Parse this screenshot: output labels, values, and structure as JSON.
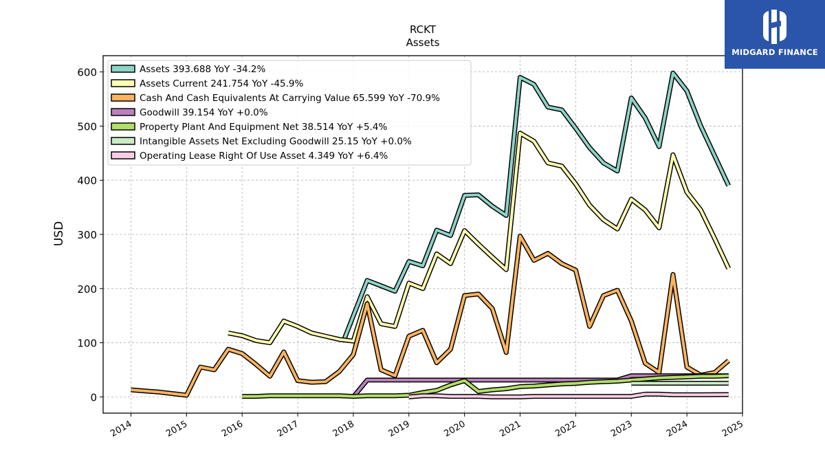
{
  "chart_data": {
    "type": "line",
    "title": "RCKT",
    "subtitle": "Assets",
    "ylabel": "USD",
    "xlabel": "",
    "xlim": [
      2013.5,
      2025.0
    ],
    "ylim": [
      -30,
      630
    ],
    "yticks": [
      0,
      100,
      200,
      300,
      400,
      500,
      600
    ],
    "xticks": [
      2014,
      2015,
      2016,
      2017,
      2018,
      2019,
      2020,
      2021,
      2022,
      2023,
      2024,
      2025
    ],
    "grid": true,
    "legend_position": "top-left",
    "series": [
      {
        "name": "Assets  393.688 YoY -34.2%",
        "color": "#8dd3c7",
        "x": [
          2017.83,
          2018.25,
          2018.5,
          2018.75,
          2019.0,
          2019.25,
          2019.5,
          2019.75,
          2020.0,
          2020.25,
          2020.5,
          2020.75,
          2021.0,
          2021.25,
          2021.5,
          2021.75,
          2022.0,
          2022.25,
          2022.5,
          2022.75,
          2023.0,
          2023.25,
          2023.5,
          2023.75,
          2024.0,
          2024.25,
          2024.5,
          2024.75
        ],
        "y": [
          105,
          215,
          205,
          195,
          250,
          242,
          308,
          298,
          372,
          373,
          352,
          335,
          590,
          577,
          535,
          530,
          496,
          460,
          432,
          417,
          552,
          515,
          462,
          598,
          565,
          500,
          445,
          390
        ]
      },
      {
        "name": "Assets Current  241.754 YoY -45.9%",
        "color": "#ffffb3",
        "x": [
          2015.75,
          2016.0,
          2016.25,
          2016.5,
          2016.75,
          2017.0,
          2017.25,
          2017.5,
          2017.75,
          2018.0,
          2018.25,
          2018.5,
          2018.75,
          2019.0,
          2019.25,
          2019.5,
          2019.75,
          2020.0,
          2020.25,
          2020.5,
          2020.75,
          2021.0,
          2021.25,
          2021.5,
          2021.75,
          2022.0,
          2022.25,
          2022.5,
          2022.75,
          2023.0,
          2023.25,
          2023.5,
          2023.75,
          2024.0,
          2024.25,
          2024.5,
          2024.75
        ],
        "y": [
          118,
          113,
          104,
          100,
          140,
          130,
          118,
          112,
          106,
          103,
          185,
          135,
          130,
          210,
          200,
          264,
          246,
          307,
          282,
          258,
          235,
          487,
          472,
          432,
          426,
          393,
          354,
          327,
          310,
          365,
          345,
          312,
          447,
          378,
          345,
          292,
          237
        ]
      },
      {
        "name": "Cash And Cash Equivalents At Carrying Value  65.599 YoY -70.9%",
        "color": "#fdb462",
        "x": [
          2014.0,
          2014.25,
          2014.5,
          2014.75,
          2015.0,
          2015.25,
          2015.5,
          2015.75,
          2016.0,
          2016.25,
          2016.5,
          2016.75,
          2017.0,
          2017.25,
          2017.5,
          2017.75,
          2018.0,
          2018.25,
          2018.5,
          2018.75,
          2019.0,
          2019.25,
          2019.5,
          2019.75,
          2020.0,
          2020.25,
          2020.5,
          2020.75,
          2021.0,
          2021.25,
          2021.5,
          2021.75,
          2022.0,
          2022.25,
          2022.5,
          2022.75,
          2023.0,
          2023.25,
          2023.5,
          2023.75,
          2024.0,
          2024.25,
          2024.5,
          2024.75
        ],
        "y": [
          13,
          11,
          9,
          6,
          3,
          55,
          50,
          88,
          80,
          60,
          38,
          83,
          30,
          27,
          28,
          47,
          78,
          172,
          50,
          39,
          112,
          123,
          63,
          88,
          187,
          190,
          163,
          82,
          297,
          252,
          265,
          246,
          234,
          130,
          187,
          197,
          140,
          62,
          45,
          226,
          55,
          40,
          45,
          67
        ]
      },
      {
        "name": "Goodwill  39.154 YoY +0.0%",
        "color": "#bc80bd",
        "x": [
          2018.0,
          2018.25,
          2018.5,
          2018.75,
          2019.0,
          2019.25,
          2019.5,
          2019.75,
          2020.0,
          2020.25,
          2020.5,
          2020.75,
          2021.0,
          2021.25,
          2021.5,
          2021.75,
          2022.0,
          2022.25,
          2022.5,
          2022.75,
          2023.0,
          2023.25,
          2023.5,
          2023.75,
          2024.0,
          2024.25,
          2024.5,
          2024.75
        ],
        "y": [
          0,
          31,
          31,
          31,
          31,
          31,
          31,
          31,
          31,
          31,
          31,
          31,
          31,
          31,
          31,
          31,
          31,
          31,
          31,
          31,
          39,
          39,
          39,
          39,
          39,
          39,
          39,
          39
        ]
      },
      {
        "name": "Property Plant And Equipment Net  38.514 YoY +5.4%",
        "color": "#b3de69",
        "x": [
          2016.0,
          2016.25,
          2016.5,
          2016.75,
          2017.0,
          2017.25,
          2017.5,
          2017.75,
          2018.0,
          2018.25,
          2018.5,
          2018.75,
          2019.0,
          2019.25,
          2019.5,
          2019.75,
          2020.0,
          2020.25,
          2020.5,
          2020.75,
          2021.0,
          2021.25,
          2021.5,
          2021.75,
          2022.0,
          2022.25,
          2022.5,
          2022.75,
          2023.0,
          2023.25,
          2023.5,
          2023.75,
          2024.0,
          2024.25,
          2024.5,
          2024.75
        ],
        "y": [
          1,
          1,
          2,
          2,
          2,
          2,
          2,
          2,
          1,
          2,
          2,
          2,
          3,
          8,
          12,
          22,
          30,
          10,
          13,
          15,
          19,
          20,
          22,
          24,
          25,
          27,
          28,
          29,
          31,
          33,
          35,
          36,
          37,
          38,
          38,
          39
        ]
      },
      {
        "name": "Intangible Assets Net Excluding Goodwill  25.15 YoY +0.0%",
        "color": "#ccebc5",
        "x": [
          2023.0,
          2023.25,
          2023.5,
          2023.75,
          2024.0,
          2024.25,
          2024.5,
          2024.75
        ],
        "y": [
          25.15,
          25.15,
          25.15,
          25.15,
          25.15,
          25.15,
          25.15,
          25.15
        ]
      },
      {
        "name": "Operating Lease Right Of Use Asset  4.349 YoY +6.4%",
        "color": "#fccde5",
        "x": [
          2019.0,
          2019.25,
          2019.5,
          2019.75,
          2020.0,
          2020.25,
          2020.5,
          2020.75,
          2021.0,
          2021.25,
          2021.5,
          2021.75,
          2022.0,
          2022.25,
          2022.5,
          2022.75,
          2023.0,
          2023.25,
          2023.5,
          2023.75,
          2024.0,
          2024.25,
          2024.5,
          2024.75
        ],
        "y": [
          0,
          2,
          2,
          1,
          1,
          1,
          0,
          0,
          0,
          1,
          1,
          1,
          1,
          1,
          1,
          1,
          1,
          5,
          5,
          4,
          4,
          4,
          4.1,
          4.3
        ]
      }
    ]
  },
  "logo": {
    "text": "MIDGARD FINANCE"
  }
}
